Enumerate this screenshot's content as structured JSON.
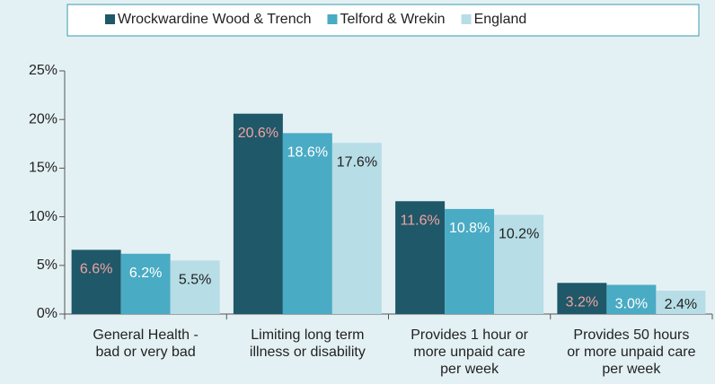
{
  "chart_data": {
    "type": "bar",
    "categories": [
      "General Health -\nbad or very bad",
      "Limiting long term\nillness or disability",
      "Provides 1 hour or\nmore unpaid care\nper week",
      "Provides 50 hours\nor more unpaid care\nper week"
    ],
    "series": [
      {
        "name": "Wrockwardine Wood & Trench",
        "color": "#1f5868",
        "label_color": "#f0a3a3",
        "values": [
          6.6,
          20.6,
          11.6,
          3.2
        ],
        "value_labels": [
          "6.6%",
          "20.6%",
          "11.6%",
          "3.2%"
        ]
      },
      {
        "name": "Telford & Wrekin",
        "color": "#4aabc4",
        "label_color": "#ffffff",
        "values": [
          6.2,
          18.6,
          10.8,
          3.0
        ],
        "value_labels": [
          "6.2%",
          "18.6%",
          "10.8%",
          "3.0%"
        ]
      },
      {
        "name": "England",
        "color": "#b7dde6",
        "label_color": "#222222",
        "values": [
          5.5,
          17.6,
          10.2,
          2.4
        ],
        "value_labels": [
          "5.5%",
          "17.6%",
          "10.2%",
          "2.4%"
        ]
      }
    ],
    "ylim": [
      0,
      25
    ],
    "yticks": [
      {
        "value": 0,
        "label": "0%"
      },
      {
        "value": 5,
        "label": "5%"
      },
      {
        "value": 10,
        "label": "10%"
      },
      {
        "value": 15,
        "label": "15%"
      },
      {
        "value": 20,
        "label": "20%"
      },
      {
        "value": 25,
        "label": "25%"
      }
    ],
    "grid": false,
    "legend": "top"
  }
}
